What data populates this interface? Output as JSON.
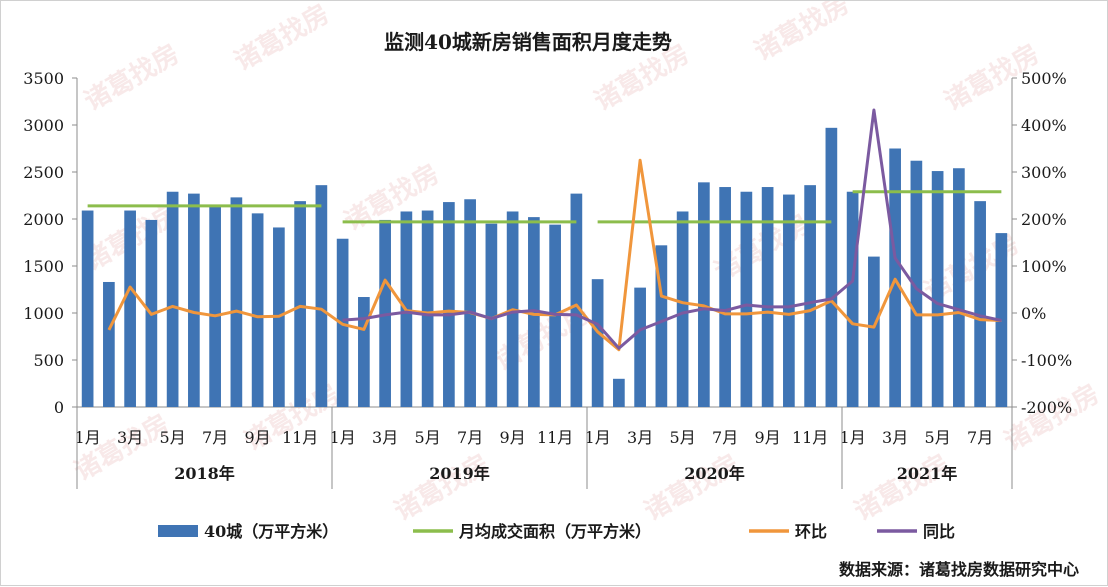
{
  "chart_data": {
    "type": "bar",
    "title": "监测40城新房销售面积月度走势",
    "years": [
      "2018年",
      "2019年",
      "2020年",
      "2021年"
    ],
    "month_labels": [
      "1月",
      "",
      "3月",
      "",
      "5月",
      "",
      "7月",
      "",
      "9月",
      "",
      "11月",
      "",
      "1月",
      "",
      "3月",
      "",
      "5月",
      "",
      "7月",
      "",
      "9月",
      "",
      "11月",
      "",
      "1月",
      "",
      "3月",
      "",
      "5月",
      "",
      "7月",
      "",
      "9月",
      "",
      "11月",
      "",
      "1月",
      "",
      "3月",
      "",
      "5月",
      "",
      "7月",
      ""
    ],
    "y_left": {
      "ticks": [
        "0",
        "500",
        "1000",
        "1500",
        "2000",
        "2500",
        "3000",
        "3500"
      ],
      "ylim": [
        0,
        3500
      ]
    },
    "y_right": {
      "ticks": [
        "-200%",
        "-100%",
        "0%",
        "100%",
        "200%",
        "300%",
        "400%",
        "500%"
      ],
      "ylim": [
        -200,
        500
      ]
    },
    "series": [
      {
        "name": "40城（万平方米）",
        "kind": "bar",
        "color": "#3f74b4",
        "values": [
          2090,
          1330,
          2090,
          1990,
          2290,
          2270,
          2140,
          2230,
          2060,
          1910,
          2190,
          2360,
          1790,
          1170,
          1990,
          2080,
          2090,
          2180,
          2210,
          1950,
          2080,
          2020,
          1940,
          2270,
          1360,
          300,
          1270,
          1720,
          2080,
          2390,
          2340,
          2290,
          2340,
          2260,
          2360,
          2970,
          2290,
          1600,
          2750,
          2620,
          2510,
          2540,
          2190,
          1850
        ]
      },
      {
        "name": "月均成交面积（万平方米）",
        "kind": "segments",
        "color": "#8cbd4c",
        "segments": [
          {
            "start": 0,
            "end": 11,
            "value": 2140
          },
          {
            "start": 12,
            "end": 23,
            "value": 1970
          },
          {
            "start": 24,
            "end": 35,
            "value": 1970
          },
          {
            "start": 36,
            "end": 43,
            "value": 2290
          }
        ]
      },
      {
        "name": "环比",
        "kind": "line",
        "axis": "right",
        "color": "#f0963c",
        "values": [
          null,
          -36,
          55,
          -3,
          14,
          1,
          -6,
          4,
          -8,
          -7,
          14,
          8,
          -24,
          -35,
          70,
          5,
          0,
          4,
          1,
          -12,
          7,
          -3,
          -4,
          17,
          -40,
          -78,
          325,
          36,
          22,
          15,
          -2,
          -2,
          2,
          -3,
          5,
          26,
          -23,
          -30,
          72,
          -4,
          -4,
          1,
          -14,
          -16
        ]
      },
      {
        "name": "同比",
        "kind": "line",
        "axis": "right",
        "color": "#7b5aa0",
        "values": [
          null,
          null,
          null,
          null,
          null,
          null,
          null,
          null,
          null,
          null,
          null,
          null,
          -15,
          -12,
          -4,
          2,
          -4,
          -4,
          2,
          -12,
          2,
          5,
          -3,
          -4,
          -24,
          -75,
          -36,
          -18,
          0,
          9,
          5,
          17,
          13,
          13,
          22,
          30,
          68,
          432,
          117,
          52,
          20,
          7,
          -6,
          -16
        ]
      }
    ],
    "legend_position": "bottom",
    "grid": false
  },
  "footer": {
    "source": "数据来源：诸葛找房数据研究中心"
  },
  "watermark": "诸葛找房"
}
